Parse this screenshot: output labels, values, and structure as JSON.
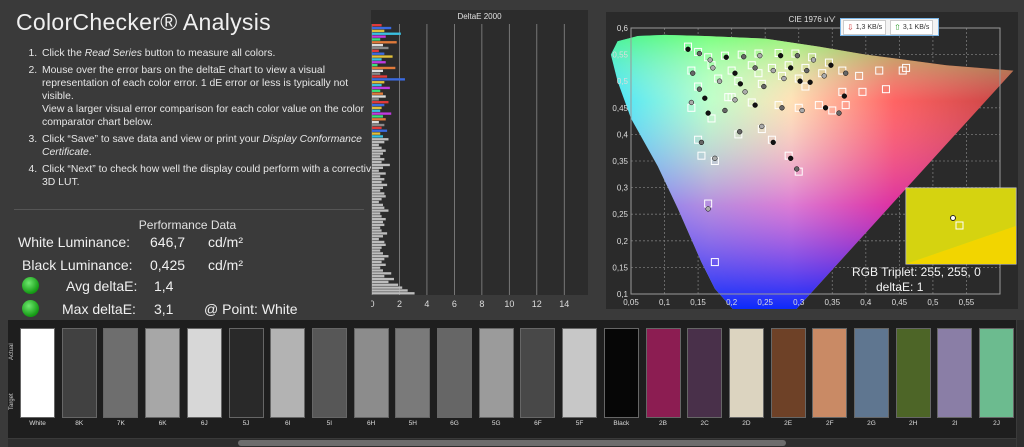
{
  "title": "ColorChecker® Analysis",
  "instructions": {
    "s1_a": "Click the ",
    "s1_em": "Read Series",
    "s1_b": " button to measure all colors.",
    "s2_a": "Mouse over the error bars on the deltaE chart to view a visual representation of each color error. 1 dE error or less is typically not visible.",
    "s2_b": "View a larger visual error comparison for each color value on the color comparator chart below.",
    "s3_a": "Click “Save” to save data and view or print your ",
    "s3_em": "Display Conformance Certificate",
    "s3_b": ".",
    "s4": "Click “Next” to check how well the display could perform with a corrective 3D LUT."
  },
  "performance": {
    "title": "Performance Data",
    "white_label": "White Luminance:",
    "white_value": "646,7",
    "white_unit": "cd/m²",
    "black_label": "Black Luminance:",
    "black_value": "0,425",
    "black_unit": "cd/m²",
    "avg_label": "Avg deltaE:",
    "avg_value": "1,4",
    "max_label": "Max deltaE:",
    "max_value": "3,1",
    "point_label": "@ Point: White",
    "status_color": "#22bb22"
  },
  "deltae_chart": {
    "title": "DeltaE 2000",
    "ticks": [
      "0",
      "2",
      "4",
      "6",
      "8",
      "10",
      "12",
      "14"
    ],
    "xlim": [
      0,
      15
    ],
    "bars": [
      0.7,
      1.4,
      0.9,
      2.1,
      1.0,
      0.6,
      1.8,
      0.8,
      1.2,
      0.5,
      0.9,
      1.5,
      0.7,
      1.0,
      0.4,
      1.7,
      0.8,
      0.6,
      1.1,
      2.4,
      0.9,
      0.7,
      1.3,
      0.6,
      0.8,
      1.0,
      0.5,
      1.2,
      0.9,
      0.7,
      0.6,
      1.4,
      0.8,
      1.0,
      0.5,
      0.9,
      0.7,
      1.1,
      0.6,
      0.8,
      1.2,
      0.9,
      0.5,
      0.7,
      1.0,
      0.8,
      0.6,
      0.9,
      0.7,
      1.3,
      0.8,
      0.5,
      1.0,
      0.6,
      0.9,
      0.7,
      1.1,
      0.8,
      0.6,
      0.9,
      1.0,
      0.7,
      0.5,
      0.8,
      0.9,
      1.2,
      0.6,
      0.7,
      1.0,
      0.8,
      0.9,
      0.6,
      0.7,
      1.1,
      0.8,
      0.5,
      0.9,
      1.0,
      0.7,
      0.6,
      0.8,
      1.2,
      0.9,
      0.7,
      1.0,
      0.6,
      0.8,
      1.4,
      0.9,
      1.6,
      1.2,
      1.9,
      2.2,
      2.6,
      3.1
    ]
  },
  "cie_chart": {
    "title": "CIE 1976 u'v'",
    "xticks": [
      "0,05",
      "0,1",
      "0,15",
      "0,2",
      "0,25",
      "0,3",
      "0,35",
      "0,4",
      "0,45",
      "0,5",
      "0,55"
    ],
    "yticks": [
      "0,1",
      "0,15",
      "0,2",
      "0,25",
      "0,3",
      "0,35",
      "0,4",
      "0,45",
      "0,5",
      "0,55",
      "0,6"
    ],
    "xlim": [
      0.05,
      0.6
    ],
    "ylim": [
      0.1,
      0.6
    ],
    "targets": [
      [
        0.135,
        0.565
      ],
      [
        0.15,
        0.555
      ],
      [
        0.165,
        0.545
      ],
      [
        0.19,
        0.548
      ],
      [
        0.215,
        0.55
      ],
      [
        0.24,
        0.552
      ],
      [
        0.27,
        0.553
      ],
      [
        0.295,
        0.552
      ],
      [
        0.32,
        0.545
      ],
      [
        0.345,
        0.535
      ],
      [
        0.365,
        0.52
      ],
      [
        0.39,
        0.51
      ],
      [
        0.42,
        0.52
      ],
      [
        0.46,
        0.525
      ],
      [
        0.17,
        0.53
      ],
      [
        0.2,
        0.52
      ],
      [
        0.23,
        0.53
      ],
      [
        0.26,
        0.525
      ],
      [
        0.285,
        0.53
      ],
      [
        0.31,
        0.525
      ],
      [
        0.335,
        0.515
      ],
      [
        0.365,
        0.48
      ],
      [
        0.395,
        0.48
      ],
      [
        0.43,
        0.485
      ],
      [
        0.14,
        0.52
      ],
      [
        0.18,
        0.505
      ],
      [
        0.21,
        0.5
      ],
      [
        0.245,
        0.495
      ],
      [
        0.275,
        0.51
      ],
      [
        0.3,
        0.505
      ],
      [
        0.15,
        0.49
      ],
      [
        0.2,
        0.47
      ],
      [
        0.23,
        0.46
      ],
      [
        0.27,
        0.455
      ],
      [
        0.3,
        0.45
      ],
      [
        0.33,
        0.455
      ],
      [
        0.35,
        0.445
      ],
      [
        0.14,
        0.45
      ],
      [
        0.17,
        0.43
      ],
      [
        0.21,
        0.4
      ],
      [
        0.245,
        0.41
      ],
      [
        0.26,
        0.39
      ],
      [
        0.15,
        0.39
      ],
      [
        0.155,
        0.36
      ],
      [
        0.175,
        0.35
      ],
      [
        0.285,
        0.36
      ],
      [
        0.3,
        0.33
      ],
      [
        0.165,
        0.27
      ],
      [
        0.175,
        0.16
      ],
      [
        0.455,
        0.52
      ],
      [
        0.37,
        0.455
      ],
      [
        0.195,
        0.47
      ],
      [
        0.24,
        0.515
      ],
      [
        0.31,
        0.49
      ]
    ],
    "measured": [
      [
        0.135,
        0.56
      ],
      [
        0.152,
        0.552
      ],
      [
        0.168,
        0.54
      ],
      [
        0.192,
        0.545
      ],
      [
        0.218,
        0.546
      ],
      [
        0.242,
        0.548
      ],
      [
        0.273,
        0.548
      ],
      [
        0.298,
        0.548
      ],
      [
        0.322,
        0.54
      ],
      [
        0.348,
        0.53
      ],
      [
        0.37,
        0.515
      ],
      [
        0.172,
        0.525
      ],
      [
        0.205,
        0.515
      ],
      [
        0.235,
        0.525
      ],
      [
        0.262,
        0.52
      ],
      [
        0.288,
        0.525
      ],
      [
        0.312,
        0.52
      ],
      [
        0.338,
        0.51
      ],
      [
        0.368,
        0.472
      ],
      [
        0.142,
        0.515
      ],
      [
        0.182,
        0.5
      ],
      [
        0.213,
        0.495
      ],
      [
        0.248,
        0.49
      ],
      [
        0.278,
        0.505
      ],
      [
        0.302,
        0.5
      ],
      [
        0.152,
        0.485
      ],
      [
        0.205,
        0.465
      ],
      [
        0.235,
        0.455
      ],
      [
        0.275,
        0.45
      ],
      [
        0.305,
        0.445
      ],
      [
        0.34,
        0.45
      ],
      [
        0.36,
        0.44
      ],
      [
        0.14,
        0.46
      ],
      [
        0.165,
        0.44
      ],
      [
        0.212,
        0.405
      ],
      [
        0.245,
        0.415
      ],
      [
        0.262,
        0.385
      ],
      [
        0.155,
        0.385
      ],
      [
        0.175,
        0.355
      ],
      [
        0.288,
        0.355
      ],
      [
        0.297,
        0.335
      ],
      [
        0.165,
        0.26
      ],
      [
        0.16,
        0.468
      ],
      [
        0.19,
        0.445
      ],
      [
        0.22,
        0.48
      ],
      [
        0.317,
        0.498
      ]
    ]
  },
  "network": {
    "down": "1,3 KB/s",
    "up": "3,1 KB/s",
    "down_color": "#d43a3a",
    "up_color": "#2a9a2a"
  },
  "rgb_triplet": "RGB Triplet: 255, 255, 0",
  "rgb_delta": "deltaE: 1",
  "swatch_axis": {
    "actual": "Actual",
    "target": "Target"
  },
  "swatches": [
    {
      "label": "White",
      "color": "#ffffff"
    },
    {
      "label": "8K",
      "color": "#414141"
    },
    {
      "label": "7K",
      "color": "#6e6e6e"
    },
    {
      "label": "6K",
      "color": "#a7a7a7"
    },
    {
      "label": "6J",
      "color": "#d7d7d7"
    },
    {
      "label": "5J",
      "color": "#292929"
    },
    {
      "label": "6I",
      "color": "#b3b3b3"
    },
    {
      "label": "5I",
      "color": "#575757"
    },
    {
      "label": "6H",
      "color": "#8c8c8c"
    },
    {
      "label": "5H",
      "color": "#7a7a7a"
    },
    {
      "label": "6G",
      "color": "#666666"
    },
    {
      "label": "5G",
      "color": "#9b9b9b"
    },
    {
      "label": "6F",
      "color": "#484848"
    },
    {
      "label": "5F",
      "color": "#c7c7c7"
    },
    {
      "label": "Black",
      "color": "#060606"
    },
    {
      "label": "2B",
      "color": "#8c1d52"
    },
    {
      "label": "2C",
      "color": "#49304a"
    },
    {
      "label": "2D",
      "color": "#dcd4c0"
    },
    {
      "label": "2E",
      "color": "#6e4127"
    },
    {
      "label": "2F",
      "color": "#c98a65"
    },
    {
      "label": "2G",
      "color": "#5f7690"
    },
    {
      "label": "2H",
      "color": "#4d6527"
    },
    {
      "label": "2I",
      "color": "#8a7ea6"
    },
    {
      "label": "2J",
      "color": "#6cbb8f"
    }
  ]
}
